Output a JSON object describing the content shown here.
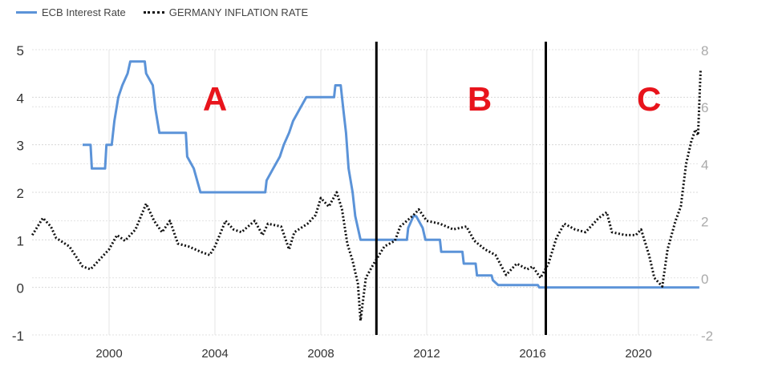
{
  "chart_data": {
    "type": "line",
    "title": "",
    "legend_position": "top-left",
    "grid": true,
    "x_ticks": [
      "2000",
      "2004",
      "2008",
      "2012",
      "2016",
      "2020"
    ],
    "xlim": [
      1997.1,
      2022.4
    ],
    "y_left": {
      "ylim": [
        -1,
        5
      ],
      "ticks": [
        "5",
        "4",
        "3",
        "2",
        "1",
        "0",
        "-1"
      ]
    },
    "y_right": {
      "ylim": [
        -2,
        8
      ],
      "ticks": [
        "8",
        "6",
        "4",
        "2",
        "0",
        "-2"
      ]
    },
    "series": [
      {
        "name": "ECB Interest Rate",
        "axis": "left",
        "color": "#5b93d8",
        "style": "solid",
        "points": [
          [
            1999.0,
            3.0
          ],
          [
            1999.3,
            3.0
          ],
          [
            1999.35,
            2.5
          ],
          [
            1999.85,
            2.5
          ],
          [
            1999.9,
            3.0
          ],
          [
            2000.1,
            3.0
          ],
          [
            2000.2,
            3.5
          ],
          [
            2000.35,
            4.0
          ],
          [
            2000.5,
            4.25
          ],
          [
            2000.7,
            4.5
          ],
          [
            2000.8,
            4.75
          ],
          [
            2001.35,
            4.75
          ],
          [
            2001.4,
            4.5
          ],
          [
            2001.65,
            4.25
          ],
          [
            2001.75,
            3.75
          ],
          [
            2001.9,
            3.25
          ],
          [
            2002.9,
            3.25
          ],
          [
            2002.95,
            2.75
          ],
          [
            2003.2,
            2.5
          ],
          [
            2003.45,
            2.0
          ],
          [
            2005.9,
            2.0
          ],
          [
            2005.95,
            2.25
          ],
          [
            2006.2,
            2.5
          ],
          [
            2006.45,
            2.75
          ],
          [
            2006.6,
            3.0
          ],
          [
            2006.8,
            3.25
          ],
          [
            2006.95,
            3.5
          ],
          [
            2007.2,
            3.75
          ],
          [
            2007.45,
            4.0
          ],
          [
            2008.5,
            4.0
          ],
          [
            2008.55,
            4.25
          ],
          [
            2008.75,
            4.25
          ],
          [
            2008.85,
            3.75
          ],
          [
            2008.95,
            3.25
          ],
          [
            2009.05,
            2.5
          ],
          [
            2009.2,
            2.0
          ],
          [
            2009.3,
            1.5
          ],
          [
            2009.4,
            1.25
          ],
          [
            2009.5,
            1.0
          ],
          [
            2011.25,
            1.0
          ],
          [
            2011.3,
            1.25
          ],
          [
            2011.5,
            1.5
          ],
          [
            2011.6,
            1.5
          ],
          [
            2011.85,
            1.25
          ],
          [
            2011.95,
            1.0
          ],
          [
            2012.5,
            1.0
          ],
          [
            2012.55,
            0.75
          ],
          [
            2013.35,
            0.75
          ],
          [
            2013.4,
            0.5
          ],
          [
            2013.85,
            0.5
          ],
          [
            2013.9,
            0.25
          ],
          [
            2014.45,
            0.25
          ],
          [
            2014.5,
            0.15
          ],
          [
            2014.7,
            0.05
          ],
          [
            2016.2,
            0.05
          ],
          [
            2016.25,
            0.0
          ],
          [
            2022.3,
            0.0
          ]
        ]
      },
      {
        "name": "GERMANY INFLATION RATE",
        "axis": "right",
        "color": "#111111",
        "style": "dotted",
        "points": [
          [
            1997.1,
            1.5
          ],
          [
            1997.5,
            2.1
          ],
          [
            1997.8,
            1.8
          ],
          [
            1998.0,
            1.4
          ],
          [
            1998.5,
            1.1
          ],
          [
            1999.0,
            0.4
          ],
          [
            1999.3,
            0.3
          ],
          [
            1999.5,
            0.5
          ],
          [
            2000.0,
            1.0
          ],
          [
            2000.3,
            1.5
          ],
          [
            2000.6,
            1.3
          ],
          [
            2001.0,
            1.7
          ],
          [
            2001.4,
            2.6
          ],
          [
            2001.7,
            2.0
          ],
          [
            2002.0,
            1.6
          ],
          [
            2002.3,
            2.0
          ],
          [
            2002.6,
            1.2
          ],
          [
            2003.0,
            1.1
          ],
          [
            2003.5,
            0.9
          ],
          [
            2003.8,
            0.8
          ],
          [
            2004.0,
            1.1
          ],
          [
            2004.4,
            2.0
          ],
          [
            2004.7,
            1.7
          ],
          [
            2005.0,
            1.6
          ],
          [
            2005.5,
            2.0
          ],
          [
            2005.8,
            1.5
          ],
          [
            2006.0,
            1.9
          ],
          [
            2006.5,
            1.8
          ],
          [
            2006.8,
            1.0
          ],
          [
            2007.0,
            1.6
          ],
          [
            2007.5,
            1.9
          ],
          [
            2007.8,
            2.2
          ],
          [
            2008.0,
            2.8
          ],
          [
            2008.3,
            2.5
          ],
          [
            2008.6,
            3.0
          ],
          [
            2008.8,
            2.4
          ],
          [
            2009.0,
            1.2
          ],
          [
            2009.2,
            0.6
          ],
          [
            2009.4,
            -0.2
          ],
          [
            2009.5,
            -1.5
          ],
          [
            2009.7,
            0.0
          ],
          [
            2010.0,
            0.5
          ],
          [
            2010.4,
            1.1
          ],
          [
            2010.8,
            1.3
          ],
          [
            2011.0,
            1.8
          ],
          [
            2011.5,
            2.2
          ],
          [
            2011.7,
            2.4
          ],
          [
            2012.0,
            2.0
          ],
          [
            2012.5,
            1.9
          ],
          [
            2013.0,
            1.7
          ],
          [
            2013.5,
            1.8
          ],
          [
            2013.8,
            1.3
          ],
          [
            2014.2,
            1.0
          ],
          [
            2014.6,
            0.8
          ],
          [
            2015.0,
            0.1
          ],
          [
            2015.4,
            0.5
          ],
          [
            2015.8,
            0.3
          ],
          [
            2016.0,
            0.4
          ],
          [
            2016.3,
            0.0
          ],
          [
            2016.6,
            0.5
          ],
          [
            2016.9,
            1.4
          ],
          [
            2017.2,
            1.9
          ],
          [
            2017.6,
            1.7
          ],
          [
            2018.0,
            1.6
          ],
          [
            2018.5,
            2.1
          ],
          [
            2018.8,
            2.3
          ],
          [
            2019.0,
            1.6
          ],
          [
            2019.5,
            1.5
          ],
          [
            2019.9,
            1.5
          ],
          [
            2020.1,
            1.7
          ],
          [
            2020.4,
            0.8
          ],
          [
            2020.6,
            0.0
          ],
          [
            2020.9,
            -0.3
          ],
          [
            2021.1,
            1.0
          ],
          [
            2021.4,
            2.0
          ],
          [
            2021.6,
            2.5
          ],
          [
            2021.8,
            4.0
          ],
          [
            2022.0,
            4.8
          ],
          [
            2022.15,
            5.2
          ],
          [
            2022.25,
            5.0
          ],
          [
            2022.35,
            7.3
          ]
        ]
      }
    ],
    "annotations": [
      {
        "label": "A",
        "x": 2004.0,
        "color": "#e8141c"
      },
      {
        "label": "B",
        "x": 2014.0,
        "color": "#e8141c"
      },
      {
        "label": "C",
        "x": 2020.4,
        "color": "#e8141c"
      }
    ],
    "divider_years": [
      2010.1,
      2016.5
    ]
  }
}
